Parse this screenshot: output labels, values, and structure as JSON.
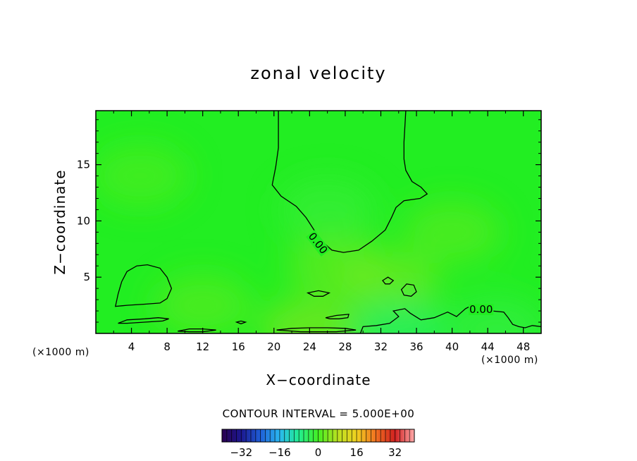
{
  "chart_data": {
    "type": "contour",
    "title": "zonal velocity",
    "xlabel": "X−coordinate",
    "ylabel": "Z−coordinate",
    "x_unit": "(×1000 m)",
    "z_unit": "(×1000 m)",
    "xlim": [
      0,
      50
    ],
    "ylim": [
      0,
      19.8
    ],
    "x_ticks": [
      4,
      8,
      12,
      16,
      20,
      24,
      28,
      32,
      36,
      40,
      44,
      48
    ],
    "y_ticks": [
      5,
      10,
      15
    ],
    "contour_interval_text": "CONTOUR INTERVAL = 5.000E+00",
    "contour_labels": [
      "0.00",
      "0.00"
    ],
    "colorbar": {
      "min": -40,
      "max": 40,
      "ticks": [
        -32,
        -16,
        0,
        16,
        32
      ],
      "colors": [
        "#2a0050",
        "#1c1890",
        "#1f5fd8",
        "#2ab8f0",
        "#22ee90",
        "#44ee22",
        "#b8e020",
        "#f0d020",
        "#f07020",
        "#d02020",
        "#ffaaaa"
      ]
    },
    "field": {
      "background": "#22ee22",
      "patches": [
        {
          "x": 27,
          "z": 6,
          "value": 3
        },
        {
          "x": 33,
          "z": 4.5,
          "value": 4
        },
        {
          "x": 40,
          "z": 9,
          "value": 2
        },
        {
          "x": 26,
          "z": 11,
          "value": -2
        },
        {
          "x": 5,
          "z": 14,
          "value": 1
        },
        {
          "x": 24,
          "z": 0.4,
          "value": 5
        },
        {
          "x": 34,
          "z": 0.3,
          "value": -6
        },
        {
          "x": 45,
          "z": 0.4,
          "value": -3
        },
        {
          "x": 12,
          "z": 2.5,
          "value": 2
        }
      ]
    },
    "contours": [
      {
        "level": 0,
        "points": [
          [
            20.5,
            19.8
          ],
          [
            20.5,
            16.5
          ],
          [
            20.2,
            14.8
          ],
          [
            19.8,
            13.2
          ],
          [
            20.8,
            12.2
          ],
          [
            22.5,
            11.3
          ],
          [
            23.6,
            10.3
          ],
          [
            24.5,
            9.2
          ],
          [
            25.5,
            8.1
          ],
          [
            26.5,
            7.4
          ],
          [
            27.8,
            7.2
          ],
          [
            29.5,
            7.4
          ],
          [
            31,
            8.2
          ],
          [
            32.5,
            9.2
          ],
          [
            33.2,
            10.3
          ],
          [
            33.7,
            11.2
          ],
          [
            34.6,
            11.8
          ],
          [
            36.4,
            12
          ],
          [
            37.2,
            12.4
          ],
          [
            36.5,
            13
          ],
          [
            35.5,
            13.5
          ],
          [
            34.8,
            14.5
          ],
          [
            34.6,
            15.5
          ],
          [
            34.6,
            17
          ],
          [
            34.8,
            19.8
          ]
        ]
      },
      {
        "level": 0,
        "closed": true,
        "points": [
          [
            2.2,
            2.4
          ],
          [
            2.5,
            3.5
          ],
          [
            2.9,
            4.6
          ],
          [
            3.5,
            5.5
          ],
          [
            4.6,
            6
          ],
          [
            5.8,
            6.1
          ],
          [
            7.2,
            5.8
          ],
          [
            8,
            5
          ],
          [
            8.5,
            4
          ],
          [
            8,
            3.1
          ],
          [
            7.2,
            2.7
          ],
          [
            5.5,
            2.6
          ],
          [
            3.5,
            2.5
          ]
        ]
      },
      {
        "level": 0,
        "closed": true,
        "points": [
          [
            2.5,
            0.9
          ],
          [
            3.5,
            1.2
          ],
          [
            5.5,
            1.3
          ],
          [
            7,
            1.4
          ],
          [
            8.2,
            1.3
          ],
          [
            7.5,
            1.1
          ],
          [
            5.5,
            1
          ],
          [
            3.5,
            0.9
          ]
        ]
      },
      {
        "level": 0,
        "closed": true,
        "points": [
          [
            23.8,
            3.6
          ],
          [
            25,
            3.8
          ],
          [
            26.2,
            3.6
          ],
          [
            25.5,
            3.3
          ],
          [
            24.5,
            3.3
          ]
        ]
      },
      {
        "level": 0,
        "closed": true,
        "points": [
          [
            25.8,
            1.4
          ],
          [
            27,
            1.6
          ],
          [
            28.4,
            1.7
          ],
          [
            28.3,
            1.4
          ],
          [
            27.3,
            1.3
          ],
          [
            26.3,
            1.3
          ]
        ]
      },
      {
        "level": 0,
        "closed": true,
        "points": [
          [
            32.2,
            4.7
          ],
          [
            32.8,
            5
          ],
          [
            33.4,
            4.7
          ],
          [
            33,
            4.4
          ],
          [
            32.5,
            4.4
          ]
        ]
      },
      {
        "level": 0,
        "closed": true,
        "points": [
          [
            34.3,
            3.9
          ],
          [
            34.9,
            4.4
          ],
          [
            35.7,
            4.3
          ],
          [
            36,
            3.7
          ],
          [
            35.4,
            3.3
          ],
          [
            34.6,
            3.4
          ]
        ]
      },
      {
        "level": 0,
        "points": [
          [
            29.7,
            0
          ],
          [
            30,
            0.6
          ],
          [
            31.5,
            0.7
          ],
          [
            33,
            0.9
          ],
          [
            34,
            1.5
          ],
          [
            33.4,
            2
          ],
          [
            34.7,
            2.2
          ],
          [
            35.3,
            1.8
          ],
          [
            36.5,
            1.2
          ],
          [
            38,
            1.4
          ],
          [
            39.5,
            1.9
          ],
          [
            40.5,
            1.5
          ],
          [
            41.5,
            2.2
          ],
          [
            42,
            2.4
          ],
          [
            43,
            2.2
          ],
          [
            44.5,
            2
          ],
          [
            45.8,
            1.9
          ],
          [
            46.3,
            1.4
          ],
          [
            46.8,
            0.8
          ],
          [
            47.5,
            0.6
          ],
          [
            48.2,
            0.5
          ],
          [
            49,
            0.7
          ],
          [
            50,
            0.6
          ]
        ]
      },
      {
        "level": 0,
        "closed": true,
        "points": [
          [
            9.2,
            0.2
          ],
          [
            10.5,
            0.4
          ],
          [
            12,
            0.4
          ],
          [
            13.5,
            0.3
          ],
          [
            12,
            0.15
          ],
          [
            10.5,
            0.15
          ]
        ]
      },
      {
        "level": 0,
        "closed": true,
        "points": [
          [
            15.8,
            1
          ],
          [
            16.3,
            1.1
          ],
          [
            16.8,
            1
          ],
          [
            16.3,
            0.85
          ]
        ]
      },
      {
        "level": 0,
        "closed": true,
        "points": [
          [
            20.3,
            0.3
          ],
          [
            22,
            0.45
          ],
          [
            24,
            0.5
          ],
          [
            26,
            0.5
          ],
          [
            28,
            0.45
          ],
          [
            29.2,
            0.3
          ],
          [
            27,
            0.15
          ],
          [
            23,
            0.15
          ]
        ]
      }
    ]
  }
}
